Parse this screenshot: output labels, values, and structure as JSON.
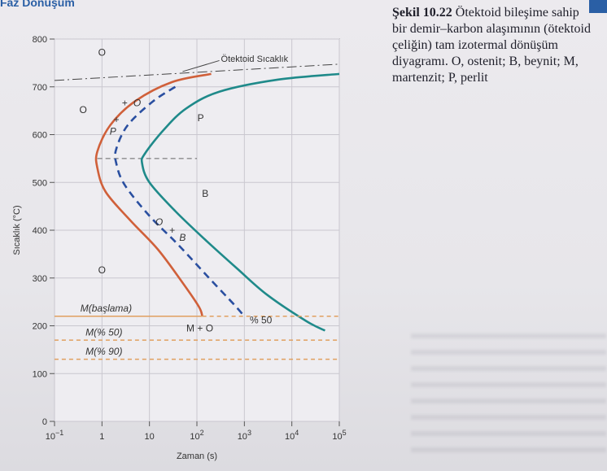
{
  "header": {
    "text": "Faz Dönüşüm"
  },
  "caption": {
    "figure_number": "Şekil 10.22",
    "text": "Ötektoid bileşime sahip bir demir–karbon alaşımının (ötektoid çeliğin) tam izotermal dönüşüm diyagramı. O, ostenit; B, beynit; M, martenzit; P, perlit"
  },
  "colors": {
    "start_curve": "#d0603a",
    "finish_curve": "#1f8a8a",
    "half_curve": "#2a4fa0",
    "martensite_line": "#e0a060",
    "grid": "#c9c7cf"
  },
  "chart_data": {
    "type": "line",
    "xlabel": "Zaman (s)",
    "ylabel": "Sıcaklık (°C)",
    "x_scale": "log",
    "xlim": [
      0.1,
      100000
    ],
    "ylim": [
      0,
      800
    ],
    "x_ticks": [
      {
        "value": 0.1,
        "base": "10",
        "exp": "−1"
      },
      {
        "value": 1,
        "base": "1",
        "exp": ""
      },
      {
        "value": 10,
        "base": "10",
        "exp": ""
      },
      {
        "value": 100,
        "base": "10",
        "exp": "2"
      },
      {
        "value": 1000,
        "base": "10",
        "exp": "3"
      },
      {
        "value": 10000,
        "base": "10",
        "exp": "4"
      },
      {
        "value": 100000,
        "base": "10",
        "exp": "5"
      }
    ],
    "y_ticks": [
      {
        "value": 0,
        "label": "0"
      },
      {
        "value": 100,
        "label": "100"
      },
      {
        "value": 200,
        "label": "200"
      },
      {
        "value": 300,
        "label": "300"
      },
      {
        "value": 400,
        "label": "400"
      },
      {
        "value": 500,
        "label": "500"
      },
      {
        "value": 600,
        "label": "600"
      },
      {
        "value": 700,
        "label": "700"
      },
      {
        "value": 800,
        "label": "800"
      }
    ],
    "grid": true,
    "eutectoid_temperature": {
      "label": "Ötektoid Sıcaklık",
      "y": 727
    },
    "series": [
      {
        "key": "start",
        "style": "solid",
        "color": "#d0603a",
        "points": [
          [
            200,
            727
          ],
          [
            30,
            710
          ],
          [
            5,
            670
          ],
          [
            1.5,
            620
          ],
          [
            0.8,
            565
          ],
          [
            0.8,
            530
          ],
          [
            1.2,
            480
          ],
          [
            4,
            420
          ],
          [
            15,
            360
          ],
          [
            50,
            290
          ],
          [
            110,
            240
          ],
          [
            130,
            220
          ]
        ]
      },
      {
        "key": "finish",
        "style": "solid",
        "color": "#1f8a8a",
        "points": [
          [
            100000,
            727
          ],
          [
            5000,
            715
          ],
          [
            300,
            690
          ],
          [
            60,
            655
          ],
          [
            20,
            610
          ],
          [
            8,
            560
          ],
          [
            7,
            540
          ],
          [
            10,
            500
          ],
          [
            35,
            440
          ],
          [
            150,
            380
          ],
          [
            700,
            320
          ],
          [
            3000,
            265
          ],
          [
            20000,
            210
          ],
          [
            50000,
            190
          ]
        ]
      },
      {
        "key": "half",
        "style": "dashed",
        "color": "#2a4fa0",
        "points": [
          [
            35,
            700
          ],
          [
            12,
            670
          ],
          [
            3.5,
            620
          ],
          [
            2,
            570
          ],
          [
            2,
            540
          ],
          [
            3,
            495
          ],
          [
            10,
            430
          ],
          [
            40,
            370
          ],
          [
            180,
            300
          ],
          [
            600,
            245
          ],
          [
            900,
            225
          ]
        ]
      },
      {
        "key": "m_start",
        "style": "solid",
        "color": "#e0a060",
        "points": [
          [
            0.1,
            220
          ],
          [
            130,
            220
          ]
        ],
        "extend_dashed_to": 100000
      },
      {
        "key": "m50",
        "style": "dashed",
        "color": "#e0a060",
        "points": [
          [
            0.1,
            170
          ],
          [
            100000,
            170
          ]
        ]
      },
      {
        "key": "m90",
        "style": "dashed",
        "color": "#e0a060",
        "points": [
          [
            0.1,
            130
          ],
          [
            100000,
            130
          ]
        ]
      }
    ],
    "labels": [
      {
        "text": "O",
        "x": 1.0,
        "y": 765
      },
      {
        "text": "O",
        "x": 0.4,
        "y": 645
      },
      {
        "text": "O",
        "x": 1.0,
        "y": 310
      },
      {
        "text": "P",
        "x": 120,
        "y": 628
      },
      {
        "text": "B",
        "x": 150,
        "y": 470
      },
      {
        "text": "M(başlama)",
        "x": 0.35,
        "y": 230
      },
      {
        "text": "M + O",
        "x": 60,
        "y": 188
      },
      {
        "text": "M(% 50)",
        "x": 0.45,
        "y": 180
      },
      {
        "text": "M(% 90)",
        "x": 0.45,
        "y": 140
      },
      {
        "text": "% 50",
        "x": 1300,
        "y": 205
      }
    ],
    "curve_annotations": [
      {
        "text": "+",
        "x": 3,
        "y": 660
      },
      {
        "text": "O",
        "x": 5.5,
        "y": 660
      },
      {
        "text": "+",
        "x": 2,
        "y": 625
      },
      {
        "text": "P",
        "x": 1.7,
        "y": 600
      },
      {
        "text": "O",
        "x": 16,
        "y": 410
      },
      {
        "text": "+",
        "x": 30,
        "y": 393
      },
      {
        "text": "B",
        "x": 50,
        "y": 378
      }
    ],
    "lines_of_transition": [
      {
        "style": "dashed",
        "x_from": 0.8,
        "x_to": 100,
        "y": 550
      }
    ]
  }
}
